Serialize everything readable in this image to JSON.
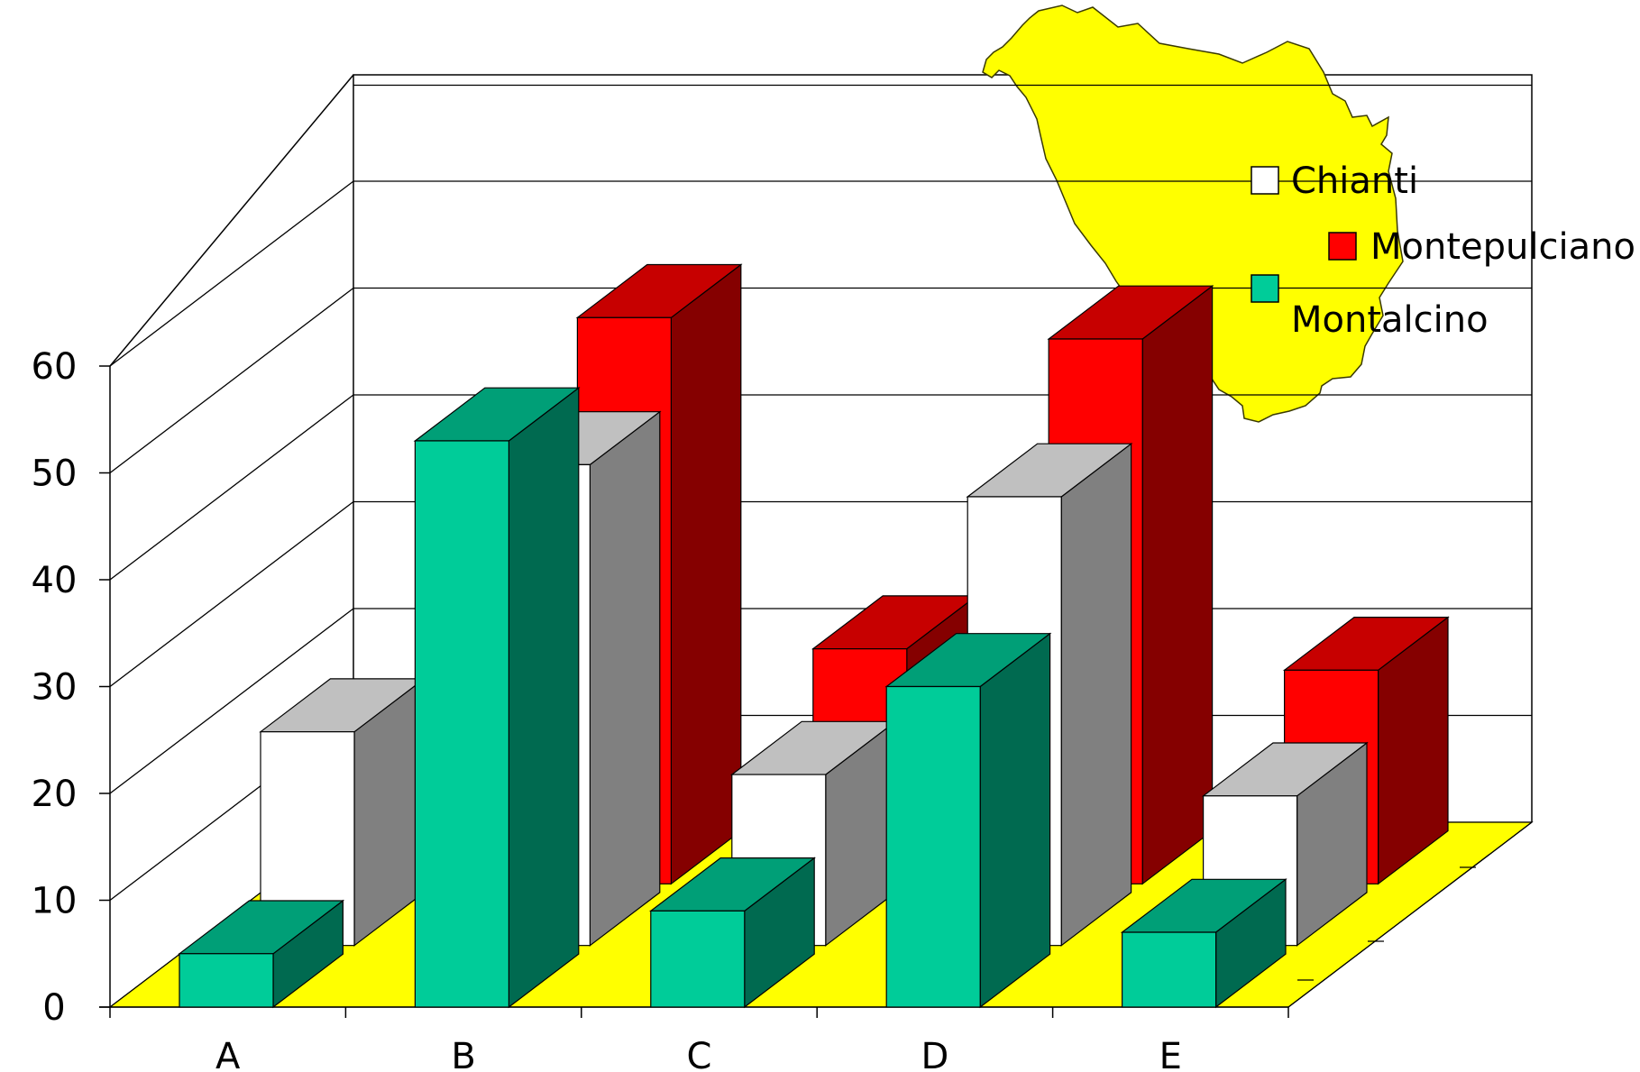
{
  "chart_data": {
    "type": "bar",
    "title": "",
    "xlabel": "",
    "ylabel": "",
    "categories": [
      "A",
      "B",
      "C",
      "D",
      "E"
    ],
    "ylim": [
      0,
      60
    ],
    "yticks": [
      0,
      10,
      20,
      30,
      40,
      50,
      60
    ],
    "grid": true,
    "floor_color": "#FFFF00",
    "legend_position": "top-right",
    "series": [
      {
        "name": "Chianti",
        "values": [
          20,
          45,
          16,
          42,
          14
        ],
        "color": "#FFFFFF"
      },
      {
        "name": "Montepulciano",
        "values": [
          0,
          53,
          22,
          51,
          20
        ],
        "color": "#FF0000"
      },
      {
        "name": "Montalcino",
        "values": [
          5,
          53,
          9,
          30,
          7
        ],
        "color": "#00CC99"
      }
    ]
  },
  "map": {
    "name": "tuscany-map",
    "color": "#FFFF00"
  }
}
